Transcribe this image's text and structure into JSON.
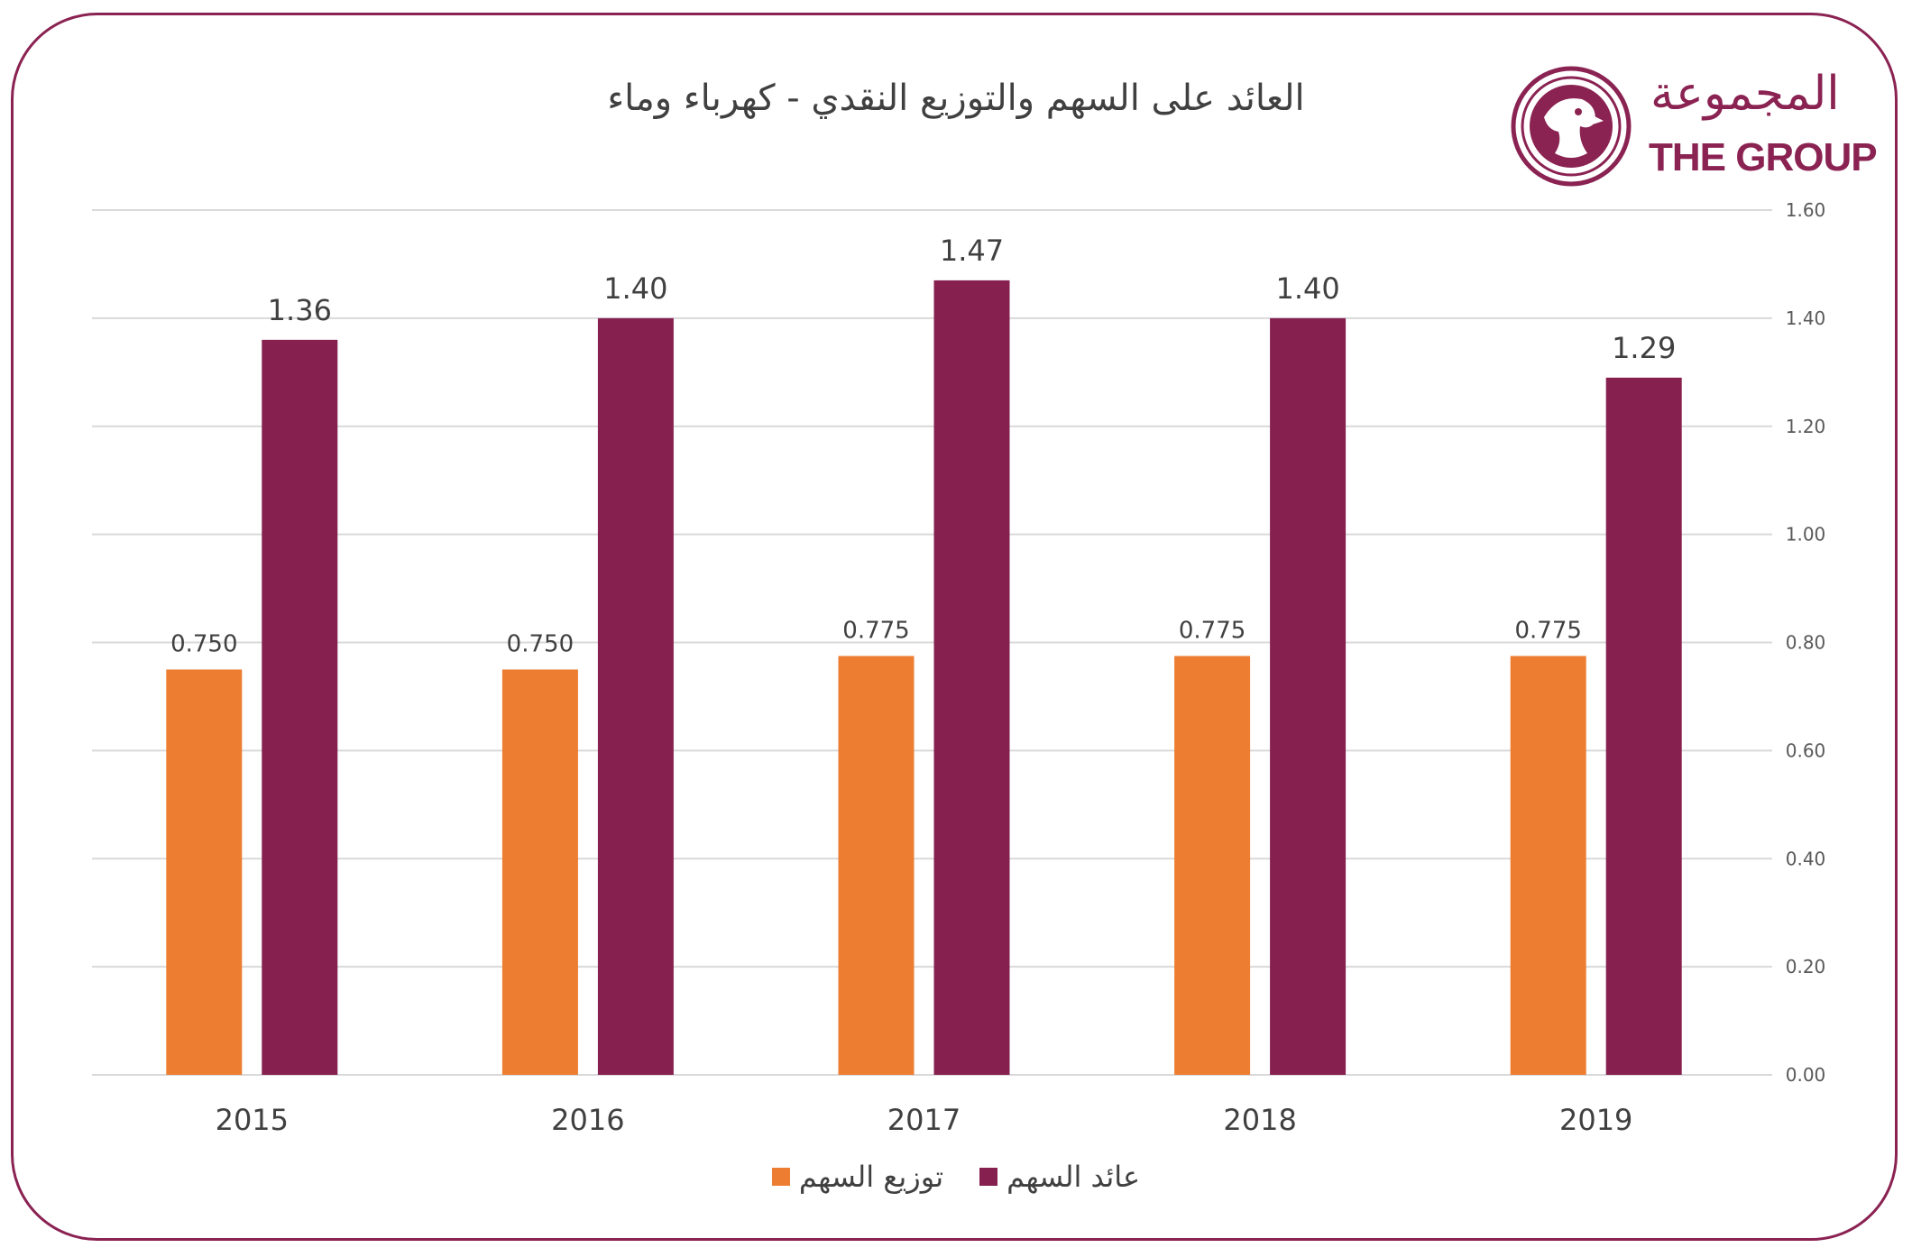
{
  "logo": {
    "arabic": "المجموعة",
    "english": "THE GROUP"
  },
  "colors": {
    "frame": "#8a2252",
    "eps": "#86204f",
    "dividend": "#ed7d31",
    "grid": "#d9d9d9",
    "text": "#404040"
  },
  "chart_data": {
    "type": "bar",
    "title": "العائد على السهم والتوزيع النقدي - كهرباء وماء",
    "categories": [
      "2015",
      "2016",
      "2017",
      "2018",
      "2019"
    ],
    "series": [
      {
        "name": "توزيع السهم",
        "values": [
          0.75,
          0.75,
          0.775,
          0.775,
          0.775
        ],
        "labels": [
          "0.750",
          "0.750",
          "0.775",
          "0.775",
          "0.775"
        ],
        "color": "#ed7d31"
      },
      {
        "name": "عائد السهم",
        "values": [
          1.36,
          1.4,
          1.47,
          1.4,
          1.29
        ],
        "labels": [
          "1.36",
          "1.40",
          "1.47",
          "1.40",
          "1.29"
        ],
        "color": "#86204f"
      }
    ],
    "yaxis": {
      "position": "right",
      "ylim": [
        0,
        1.6
      ],
      "ticks": [
        "0.00",
        "0.20",
        "0.40",
        "0.60",
        "0.80",
        "1.00",
        "1.20",
        "1.40",
        "1.60"
      ]
    },
    "grid": true,
    "legend": {
      "position": "bottom",
      "order": [
        "عائد السهم",
        "توزيع السهم"
      ]
    }
  }
}
